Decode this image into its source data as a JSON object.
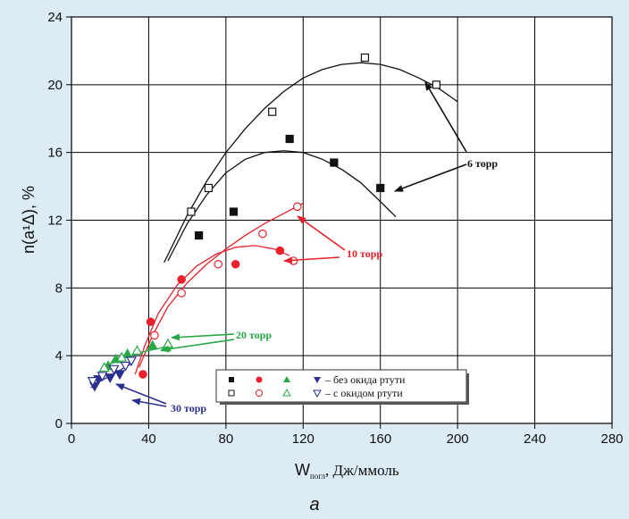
{
  "colors": {
    "background": "#dcebf4",
    "plot_bg": "#ffffff",
    "six_torr": "#111111",
    "ten_torr": "#e8212b",
    "twenty_torr": "#28a745",
    "thirty_torr": "#2b2f8f"
  },
  "chart_data": {
    "type": "scatter",
    "xlim": [
      0,
      280
    ],
    "ylim": [
      0,
      24
    ],
    "x_ticks": [
      "0",
      "40",
      "80",
      "120",
      "160",
      "200",
      "240",
      "280"
    ],
    "y_ticks": [
      "0",
      "4",
      "8",
      "12",
      "16",
      "20",
      "24"
    ],
    "grid": true,
    "ylabel": "n(a¹Δ), %",
    "xlabel_main": "W",
    "xlabel_sub": "погл",
    "xlabel_unit": ", Дж/ммоль",
    "caption": "a",
    "legend": {
      "placement": "bottom-center",
      "row_without": "– без окида ртути",
      "row_with": "– с окидом ртути"
    },
    "annotations": {
      "six": "6 торр",
      "ten": "10 торр",
      "twenty": "20 торр",
      "thirty": "30 торр"
    },
    "series": [
      {
        "pressure": "6",
        "marker": "square",
        "filled": true,
        "color": "#111111",
        "points": [
          [
            66,
            11.1
          ],
          [
            84,
            12.5
          ],
          [
            113,
            16.8
          ],
          [
            136,
            15.4
          ],
          [
            160,
            13.9
          ]
        ]
      },
      {
        "pressure": "6",
        "marker": "square",
        "filled": false,
        "color": "#111111",
        "points": [
          [
            62,
            12.5
          ],
          [
            71,
            13.9
          ],
          [
            104,
            18.4
          ],
          [
            152,
            21.6
          ],
          [
            189,
            20.0
          ]
        ]
      },
      {
        "pressure": "10",
        "marker": "circle",
        "filled": true,
        "color": "#e8212b",
        "points": [
          [
            37,
            2.9
          ],
          [
            41,
            6.0
          ],
          [
            57,
            8.5
          ],
          [
            85,
            9.4
          ],
          [
            108,
            10.2
          ]
        ]
      },
      {
        "pressure": "10",
        "marker": "circle",
        "filled": false,
        "color": "#e8212b",
        "points": [
          [
            43,
            5.2
          ],
          [
            57,
            7.7
          ],
          [
            76,
            9.4
          ],
          [
            99,
            11.2
          ],
          [
            115,
            9.6
          ],
          [
            117,
            12.8
          ]
        ]
      },
      {
        "pressure": "20",
        "marker": "triangle-up",
        "filled": true,
        "color": "#28a745",
        "points": [
          [
            19,
            3.4
          ],
          [
            23,
            3.8
          ],
          [
            29,
            4.1
          ],
          [
            42,
            4.6
          ],
          [
            49,
            4.5
          ]
        ]
      },
      {
        "pressure": "20",
        "marker": "triangle-up",
        "filled": false,
        "color": "#28a745",
        "points": [
          [
            17,
            3.3
          ],
          [
            26,
            3.9
          ],
          [
            34,
            4.3
          ],
          [
            50,
            4.7
          ]
        ]
      },
      {
        "pressure": "30",
        "marker": "triangle-down",
        "filled": true,
        "color": "#2b2f8f",
        "points": [
          [
            12,
            2.2
          ],
          [
            14,
            2.6
          ],
          [
            20,
            2.7
          ],
          [
            25,
            2.9
          ]
        ]
      },
      {
        "pressure": "30",
        "marker": "triangle-down",
        "filled": false,
        "color": "#2b2f8f",
        "points": [
          [
            11,
            2.5
          ],
          [
            16,
            2.8
          ],
          [
            22,
            3.2
          ],
          [
            28,
            3.4
          ],
          [
            31,
            3.7
          ]
        ]
      }
    ],
    "fits": [
      {
        "color": "#111111",
        "points": [
          [
            50,
            9.6
          ],
          [
            60,
            11.8
          ],
          [
            70,
            13.5
          ],
          [
            80,
            14.8
          ],
          [
            90,
            15.6
          ],
          [
            100,
            16.0
          ],
          [
            110,
            16.1
          ],
          [
            120,
            16.0
          ],
          [
            130,
            15.6
          ],
          [
            140,
            15.0
          ],
          [
            150,
            14.2
          ],
          [
            160,
            13.1
          ],
          [
            168,
            12.2
          ]
        ]
      },
      {
        "color": "#111111",
        "points": [
          [
            48,
            9.5
          ],
          [
            60,
            12.3
          ],
          [
            70,
            14.3
          ],
          [
            80,
            16.0
          ],
          [
            90,
            17.4
          ],
          [
            100,
            18.6
          ],
          [
            110,
            19.6
          ],
          [
            120,
            20.4
          ],
          [
            130,
            20.9
          ],
          [
            140,
            21.2
          ],
          [
            150,
            21.3
          ],
          [
            160,
            21.2
          ],
          [
            170,
            20.9
          ],
          [
            180,
            20.4
          ],
          [
            190,
            19.8
          ],
          [
            200,
            19.0
          ]
        ]
      },
      {
        "color": "#e8212b",
        "points": [
          [
            33,
            2.9
          ],
          [
            38,
            4.6
          ],
          [
            45,
            6.5
          ],
          [
            55,
            8.2
          ],
          [
            65,
            9.3
          ],
          [
            75,
            10.0
          ],
          [
            85,
            10.4
          ],
          [
            95,
            10.5
          ],
          [
            105,
            10.3
          ],
          [
            113,
            9.9
          ]
        ]
      },
      {
        "color": "#e8212b",
        "points": [
          [
            35,
            3.3
          ],
          [
            42,
            5.2
          ],
          [
            50,
            6.9
          ],
          [
            60,
            8.3
          ],
          [
            70,
            9.4
          ],
          [
            80,
            10.3
          ],
          [
            90,
            11.1
          ],
          [
            100,
            11.8
          ],
          [
            110,
            12.4
          ],
          [
            120,
            13.0
          ]
        ]
      },
      {
        "color": "#28a745",
        "points": [
          [
            14,
            3.0
          ],
          [
            20,
            3.5
          ],
          [
            28,
            3.9
          ],
          [
            36,
            4.2
          ],
          [
            44,
            4.4
          ],
          [
            52,
            4.6
          ]
        ]
      },
      {
        "color": "#2b2f8f",
        "points": [
          [
            10,
            2.1
          ],
          [
            15,
            2.5
          ],
          [
            20,
            2.8
          ],
          [
            26,
            3.2
          ],
          [
            32,
            3.6
          ]
        ]
      }
    ]
  }
}
